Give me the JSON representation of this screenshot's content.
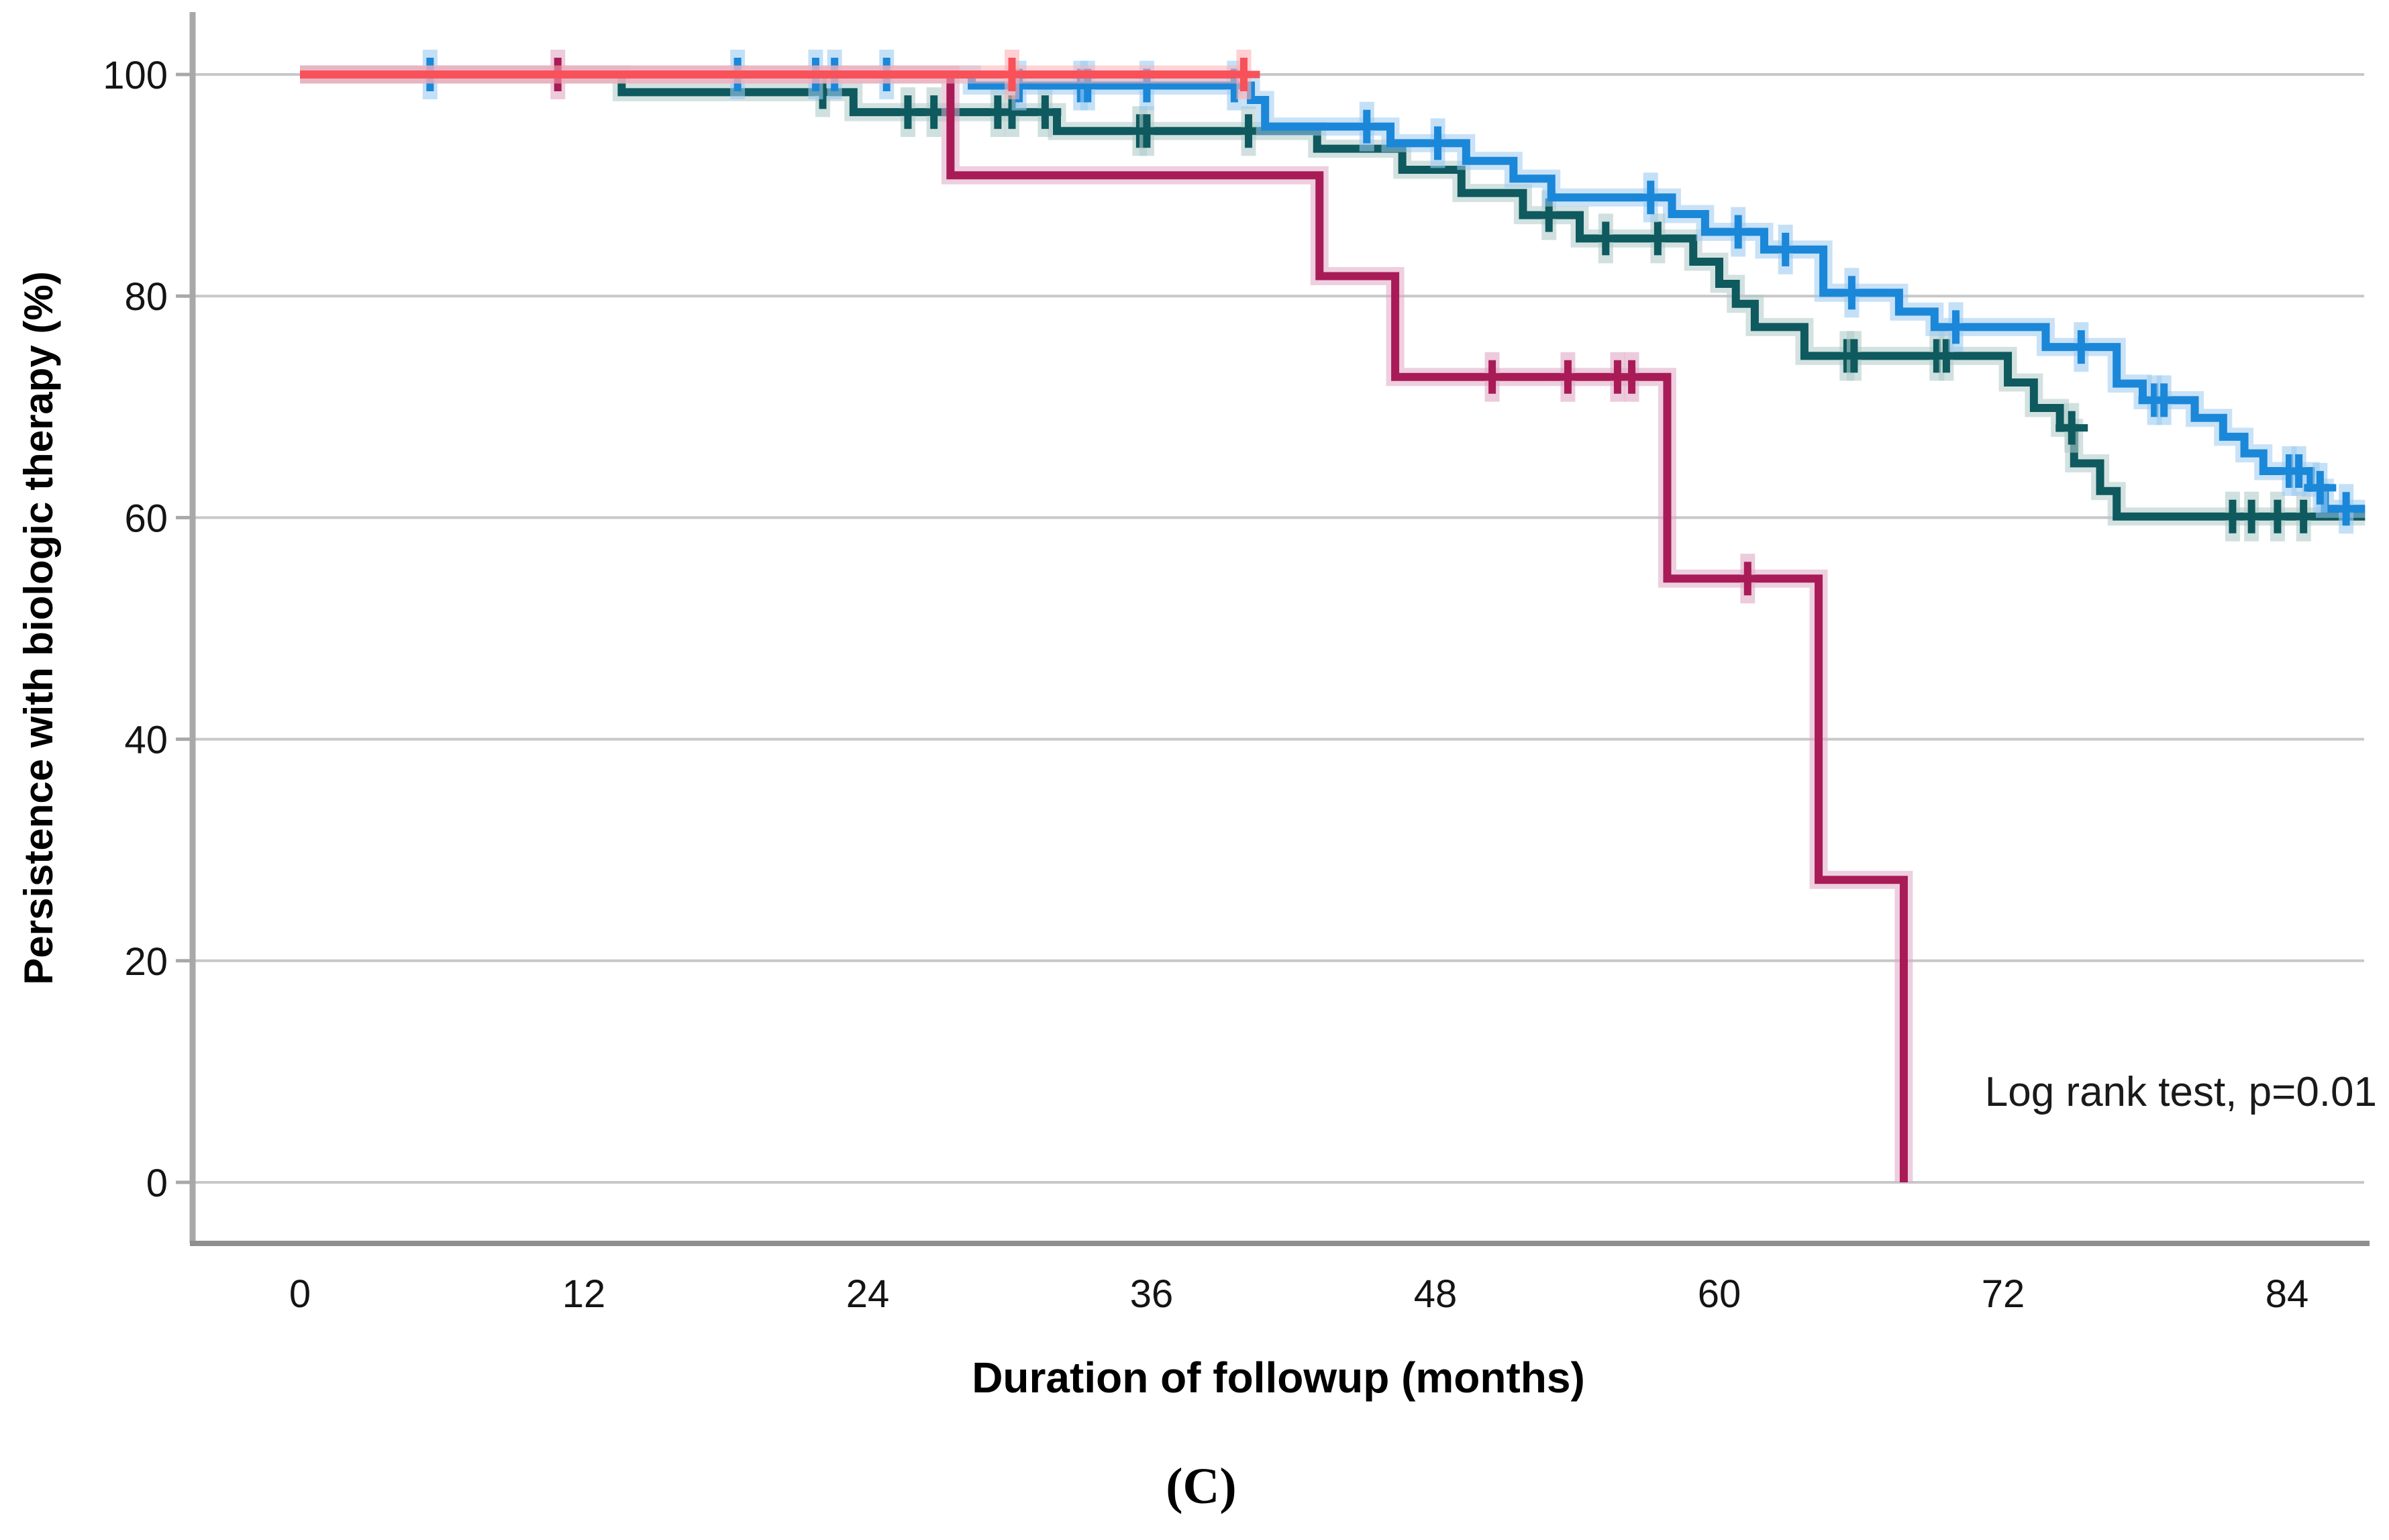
{
  "figure": {
    "caption": "(C)"
  },
  "chart_data": {
    "type": "line",
    "subtype": "kaplan-meier-step-survival",
    "title": "",
    "xlabel": "Duration of followup (months)",
    "ylabel": "Persistence with biologic therapy (%)",
    "annotation": "Log rank test, p=0.01",
    "xlim": [
      0,
      87.3
    ],
    "ylim": [
      0,
      100
    ],
    "xticks": [
      0,
      12,
      24,
      36,
      48,
      60,
      72,
      84
    ],
    "yticks": [
      0,
      20,
      40,
      60,
      80,
      100
    ],
    "grid": "horizontal",
    "legend": "none",
    "colors": {
      "gridline": "#C8C8C8",
      "axis": "#A8A8A8",
      "frame": "#8F8F8F",
      "text": "#141414"
    },
    "series": [
      {
        "name": "teal-group",
        "color": "#0E5A5E",
        "glow": "#AFCBC9",
        "steps": [
          [
            0,
            100
          ],
          [
            13.6,
            98.4
          ],
          [
            23.4,
            96.6
          ],
          [
            32.0,
            94.9
          ],
          [
            43.0,
            93.3
          ],
          [
            46.6,
            91.4
          ],
          [
            49.1,
            89.3
          ],
          [
            51.7,
            87.3
          ],
          [
            54.1,
            85.2
          ],
          [
            58.9,
            83.1
          ],
          [
            60.0,
            81.1
          ],
          [
            60.7,
            79.3
          ],
          [
            61.5,
            77.2
          ],
          [
            63.6,
            74.6
          ],
          [
            72.2,
            72.2
          ],
          [
            73.3,
            69.9
          ],
          [
            74.4,
            68.1
          ],
          [
            75.0,
            64.9
          ],
          [
            76.1,
            62.4
          ],
          [
            76.8,
            60.1
          ]
        ],
        "end": 87.3,
        "censors": [
          [
            22.1,
            98.4
          ],
          [
            25.7,
            96.6
          ],
          [
            26.8,
            96.6
          ],
          [
            29.5,
            96.6
          ],
          [
            30.1,
            96.6
          ],
          [
            31.5,
            96.6
          ],
          [
            35.5,
            94.9
          ],
          [
            35.8,
            94.9
          ],
          [
            40.1,
            94.9
          ],
          [
            52.8,
            87.3
          ],
          [
            55.2,
            85.2
          ],
          [
            57.4,
            85.2
          ],
          [
            65.4,
            74.6
          ],
          [
            65.7,
            74.6
          ],
          [
            69.2,
            74.6
          ],
          [
            69.6,
            74.6
          ],
          [
            74.9,
            68.1
          ],
          [
            81.7,
            60.1
          ],
          [
            82.5,
            60.1
          ],
          [
            83.6,
            60.1
          ],
          [
            84.7,
            60.1
          ]
        ]
      },
      {
        "name": "light-blue-group",
        "color": "#1B87D8",
        "glow": "#9CCBF1",
        "steps": [
          [
            0,
            100
          ],
          [
            28.4,
            99.0
          ],
          [
            40.2,
            97.7
          ],
          [
            40.8,
            95.3
          ],
          [
            46.1,
            93.8
          ],
          [
            49.3,
            92.2
          ],
          [
            51.3,
            90.6
          ],
          [
            52.9,
            88.9
          ],
          [
            58.0,
            87.4
          ],
          [
            59.4,
            85.8
          ],
          [
            61.9,
            84.2
          ],
          [
            64.4,
            80.3
          ],
          [
            67.6,
            78.6
          ],
          [
            69.1,
            77.2
          ],
          [
            73.8,
            75.4
          ],
          [
            76.8,
            72.1
          ],
          [
            77.9,
            70.6
          ],
          [
            80.1,
            69.0
          ],
          [
            81.3,
            67.3
          ],
          [
            82.2,
            65.8
          ],
          [
            83.0,
            64.2
          ],
          [
            85.0,
            62.7
          ],
          [
            85.6,
            60.8
          ]
        ],
        "end": 87.3,
        "censors": [
          [
            5.5,
            100
          ],
          [
            18.5,
            100
          ],
          [
            21.8,
            100
          ],
          [
            22.6,
            100
          ],
          [
            24.8,
            100
          ],
          [
            30.4,
            99.0
          ],
          [
            33.0,
            99.0
          ],
          [
            33.3,
            99.0
          ],
          [
            35.8,
            99.0
          ],
          [
            39.5,
            99.0
          ],
          [
            45.1,
            95.3
          ],
          [
            48.1,
            93.8
          ],
          [
            57.1,
            88.9
          ],
          [
            60.8,
            85.8
          ],
          [
            62.8,
            84.2
          ],
          [
            65.6,
            80.3
          ],
          [
            70.0,
            77.2
          ],
          [
            75.3,
            75.4
          ],
          [
            78.4,
            70.6
          ],
          [
            78.8,
            70.6
          ],
          [
            84.1,
            64.2
          ],
          [
            84.5,
            64.2
          ],
          [
            85.4,
            62.7
          ],
          [
            86.5,
            60.8
          ]
        ]
      },
      {
        "name": "maroon-group",
        "color": "#A81B57",
        "glow": "#DFA8C4",
        "steps": [
          [
            0,
            100
          ],
          [
            27.5,
            90.9
          ],
          [
            43.1,
            81.8
          ],
          [
            46.3,
            72.7
          ],
          [
            57.8,
            54.5
          ],
          [
            64.2,
            27.3
          ],
          [
            67.8,
            0
          ]
        ],
        "end": null,
        "censors": [
          [
            10.9,
            100
          ],
          [
            50.4,
            72.7
          ],
          [
            53.6,
            72.7
          ],
          [
            55.7,
            72.7
          ],
          [
            56.3,
            72.7
          ],
          [
            61.2,
            54.5
          ]
        ]
      },
      {
        "name": "coral-group",
        "color": "#F8515A",
        "glow": "#FDB0B4",
        "steps": [
          [
            0,
            100
          ]
        ],
        "end": 39.9,
        "censors": [
          [
            30.1,
            100
          ],
          [
            39.9,
            100
          ]
        ]
      }
    ]
  }
}
